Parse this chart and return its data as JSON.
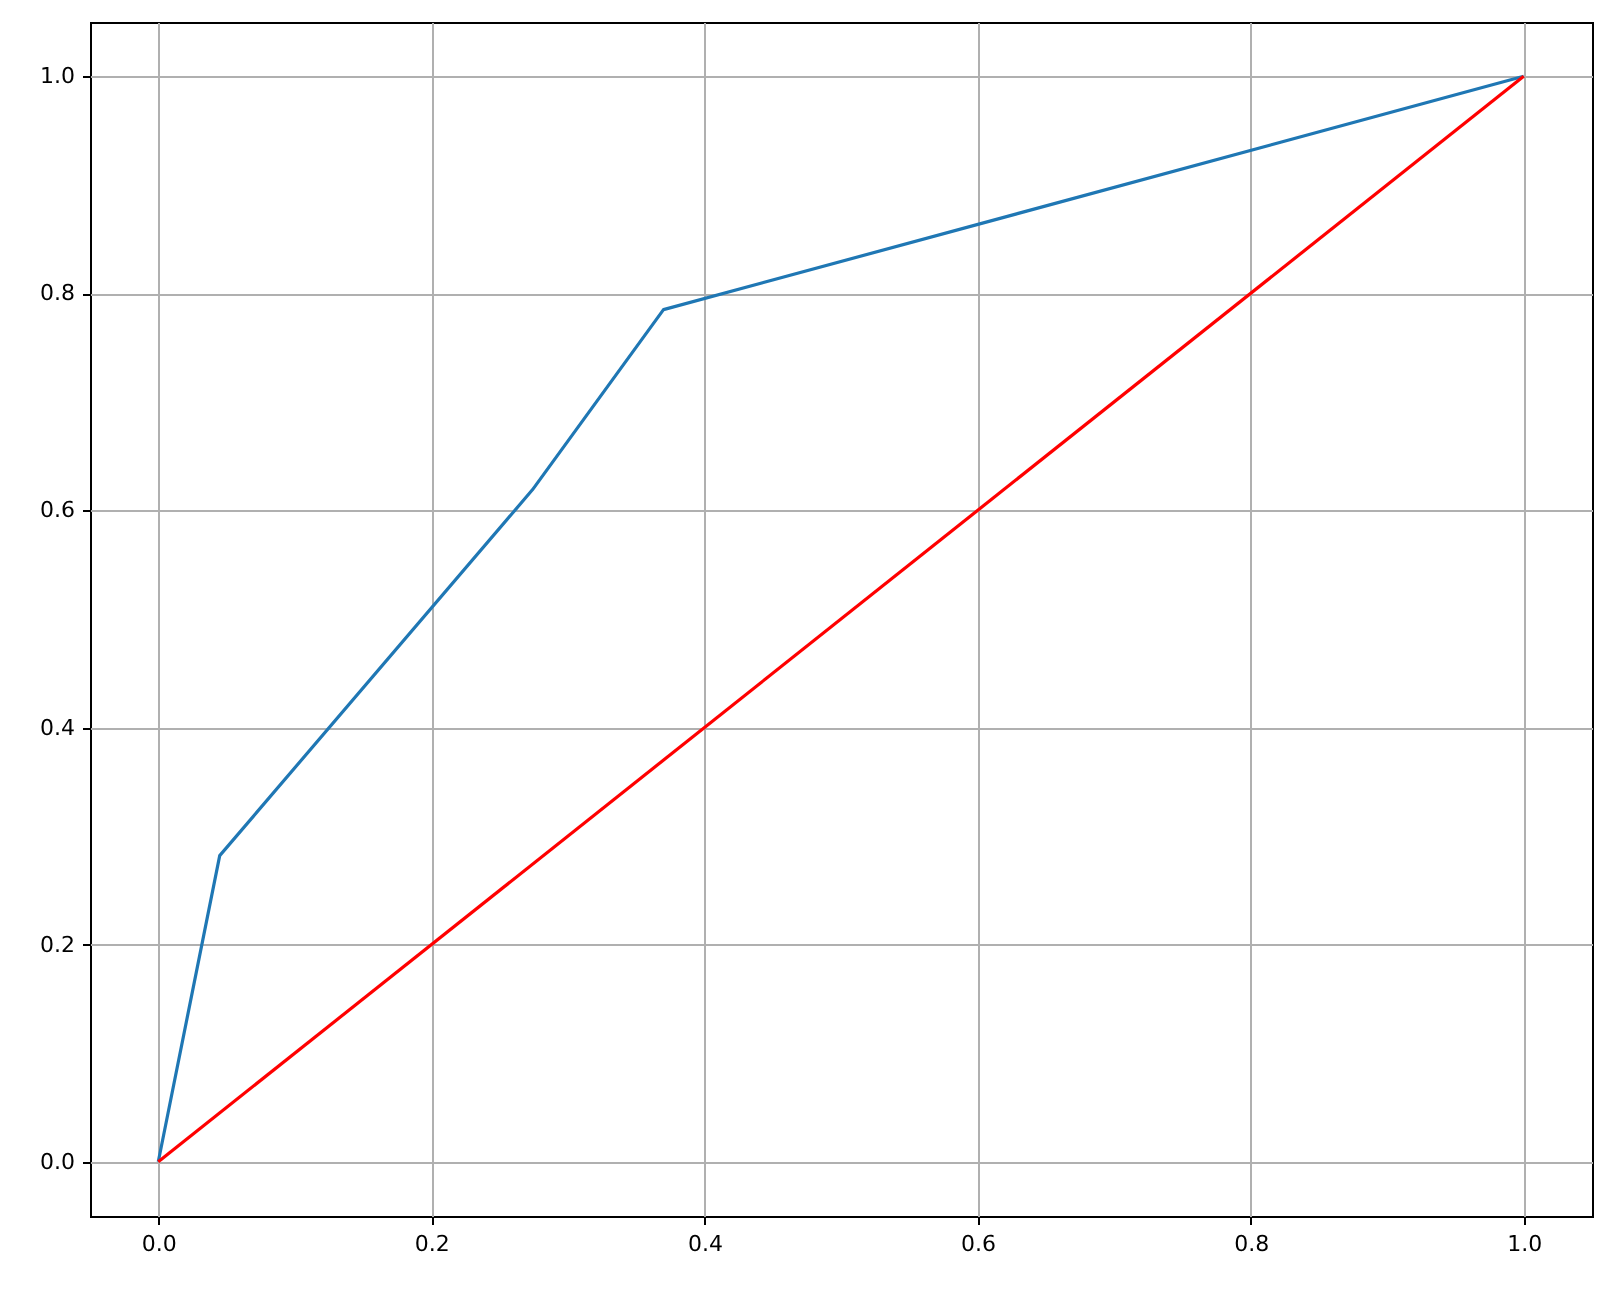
{
  "chart_data": {
    "type": "line",
    "series": [
      {
        "color": "#1f77b4",
        "x": [
          0,
          0.045,
          0.274,
          0.37,
          1
        ],
        "values": [
          0,
          0.282,
          0.619,
          0.785,
          1
        ]
      },
      {
        "color": "#ff0000",
        "x": [
          0,
          1
        ],
        "values": [
          0,
          1
        ]
      }
    ],
    "xlim": [
      -0.05,
      1.05
    ],
    "ylim": [
      -0.05,
      1.05
    ],
    "xticks": [
      {
        "value": 0,
        "label": "0.0"
      },
      {
        "value": 0.2,
        "label": "0.2"
      },
      {
        "value": 0.4,
        "label": "0.4"
      },
      {
        "value": 0.6,
        "label": "0.6"
      },
      {
        "value": 0.8,
        "label": "0.8"
      },
      {
        "value": 1,
        "label": "1.0"
      }
    ],
    "yticks": [
      {
        "value": 0,
        "label": "0.0"
      },
      {
        "value": 0.2,
        "label": "0.2"
      },
      {
        "value": 0.4,
        "label": "0.4"
      },
      {
        "value": 0.6,
        "label": "0.6"
      },
      {
        "value": 0.8,
        "label": "0.8"
      },
      {
        "value": 1,
        "label": "1.0"
      }
    ],
    "grid": true
  }
}
